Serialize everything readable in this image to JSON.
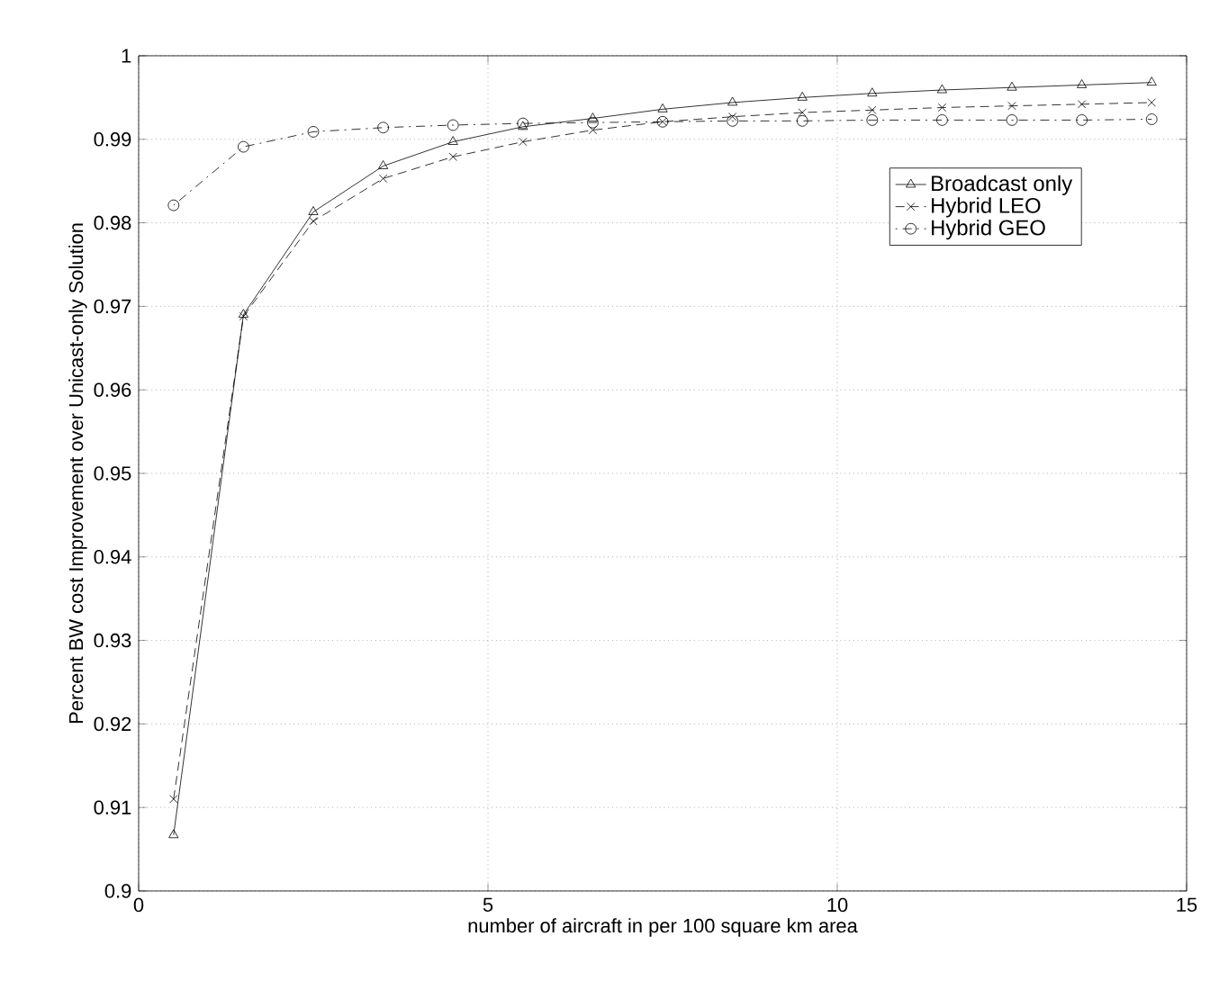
{
  "chart_data": {
    "type": "line",
    "xlabel": "number of aircraft in per 100 square km area",
    "ylabel": "Percent BW cost Improvement over Unicast-only Solution",
    "x": [
      0.5,
      1.5,
      2.5,
      3.5,
      4.5,
      5.5,
      6.5,
      7.5,
      8.5,
      9.5,
      10.5,
      11.5,
      12.5,
      13.5,
      14.5
    ],
    "series": [
      {
        "name": "Broadcast only",
        "color": "#000000",
        "marker": "triangle",
        "line_style": "solid",
        "values": [
          0.9067,
          0.969,
          0.9813,
          0.9868,
          0.9897,
          0.9915,
          0.9925,
          0.9936,
          0.9944,
          0.995,
          0.9955,
          0.9959,
          0.9962,
          0.9965,
          0.9968
        ]
      },
      {
        "name": "Hybrid LEO",
        "color": "#000000",
        "marker": "cross",
        "line_style": "dashed",
        "values": [
          0.911,
          0.9688,
          0.9802,
          0.9853,
          0.9879,
          0.9897,
          0.9911,
          0.9921,
          0.9927,
          0.9932,
          0.9935,
          0.9938,
          0.994,
          0.9942,
          0.9944
        ]
      },
      {
        "name": "Hybrid GEO",
        "color": "#000000",
        "marker": "circle",
        "line_style": "dashdot",
        "values": [
          0.9821,
          0.9891,
          0.9909,
          0.9914,
          0.9917,
          0.9919,
          0.992,
          0.9921,
          0.9922,
          0.9922,
          0.9923,
          0.9923,
          0.9923,
          0.9923,
          0.9924
        ]
      }
    ],
    "xlim": [
      0,
      15
    ],
    "xticks": [
      0,
      5,
      10,
      15
    ],
    "ylim": [
      0.9,
      1.0
    ],
    "yticks": [
      0.9,
      0.91,
      0.92,
      0.93,
      0.94,
      0.95,
      0.96,
      0.97,
      0.98,
      0.99,
      1
    ],
    "grid": true,
    "legend": "top right"
  }
}
